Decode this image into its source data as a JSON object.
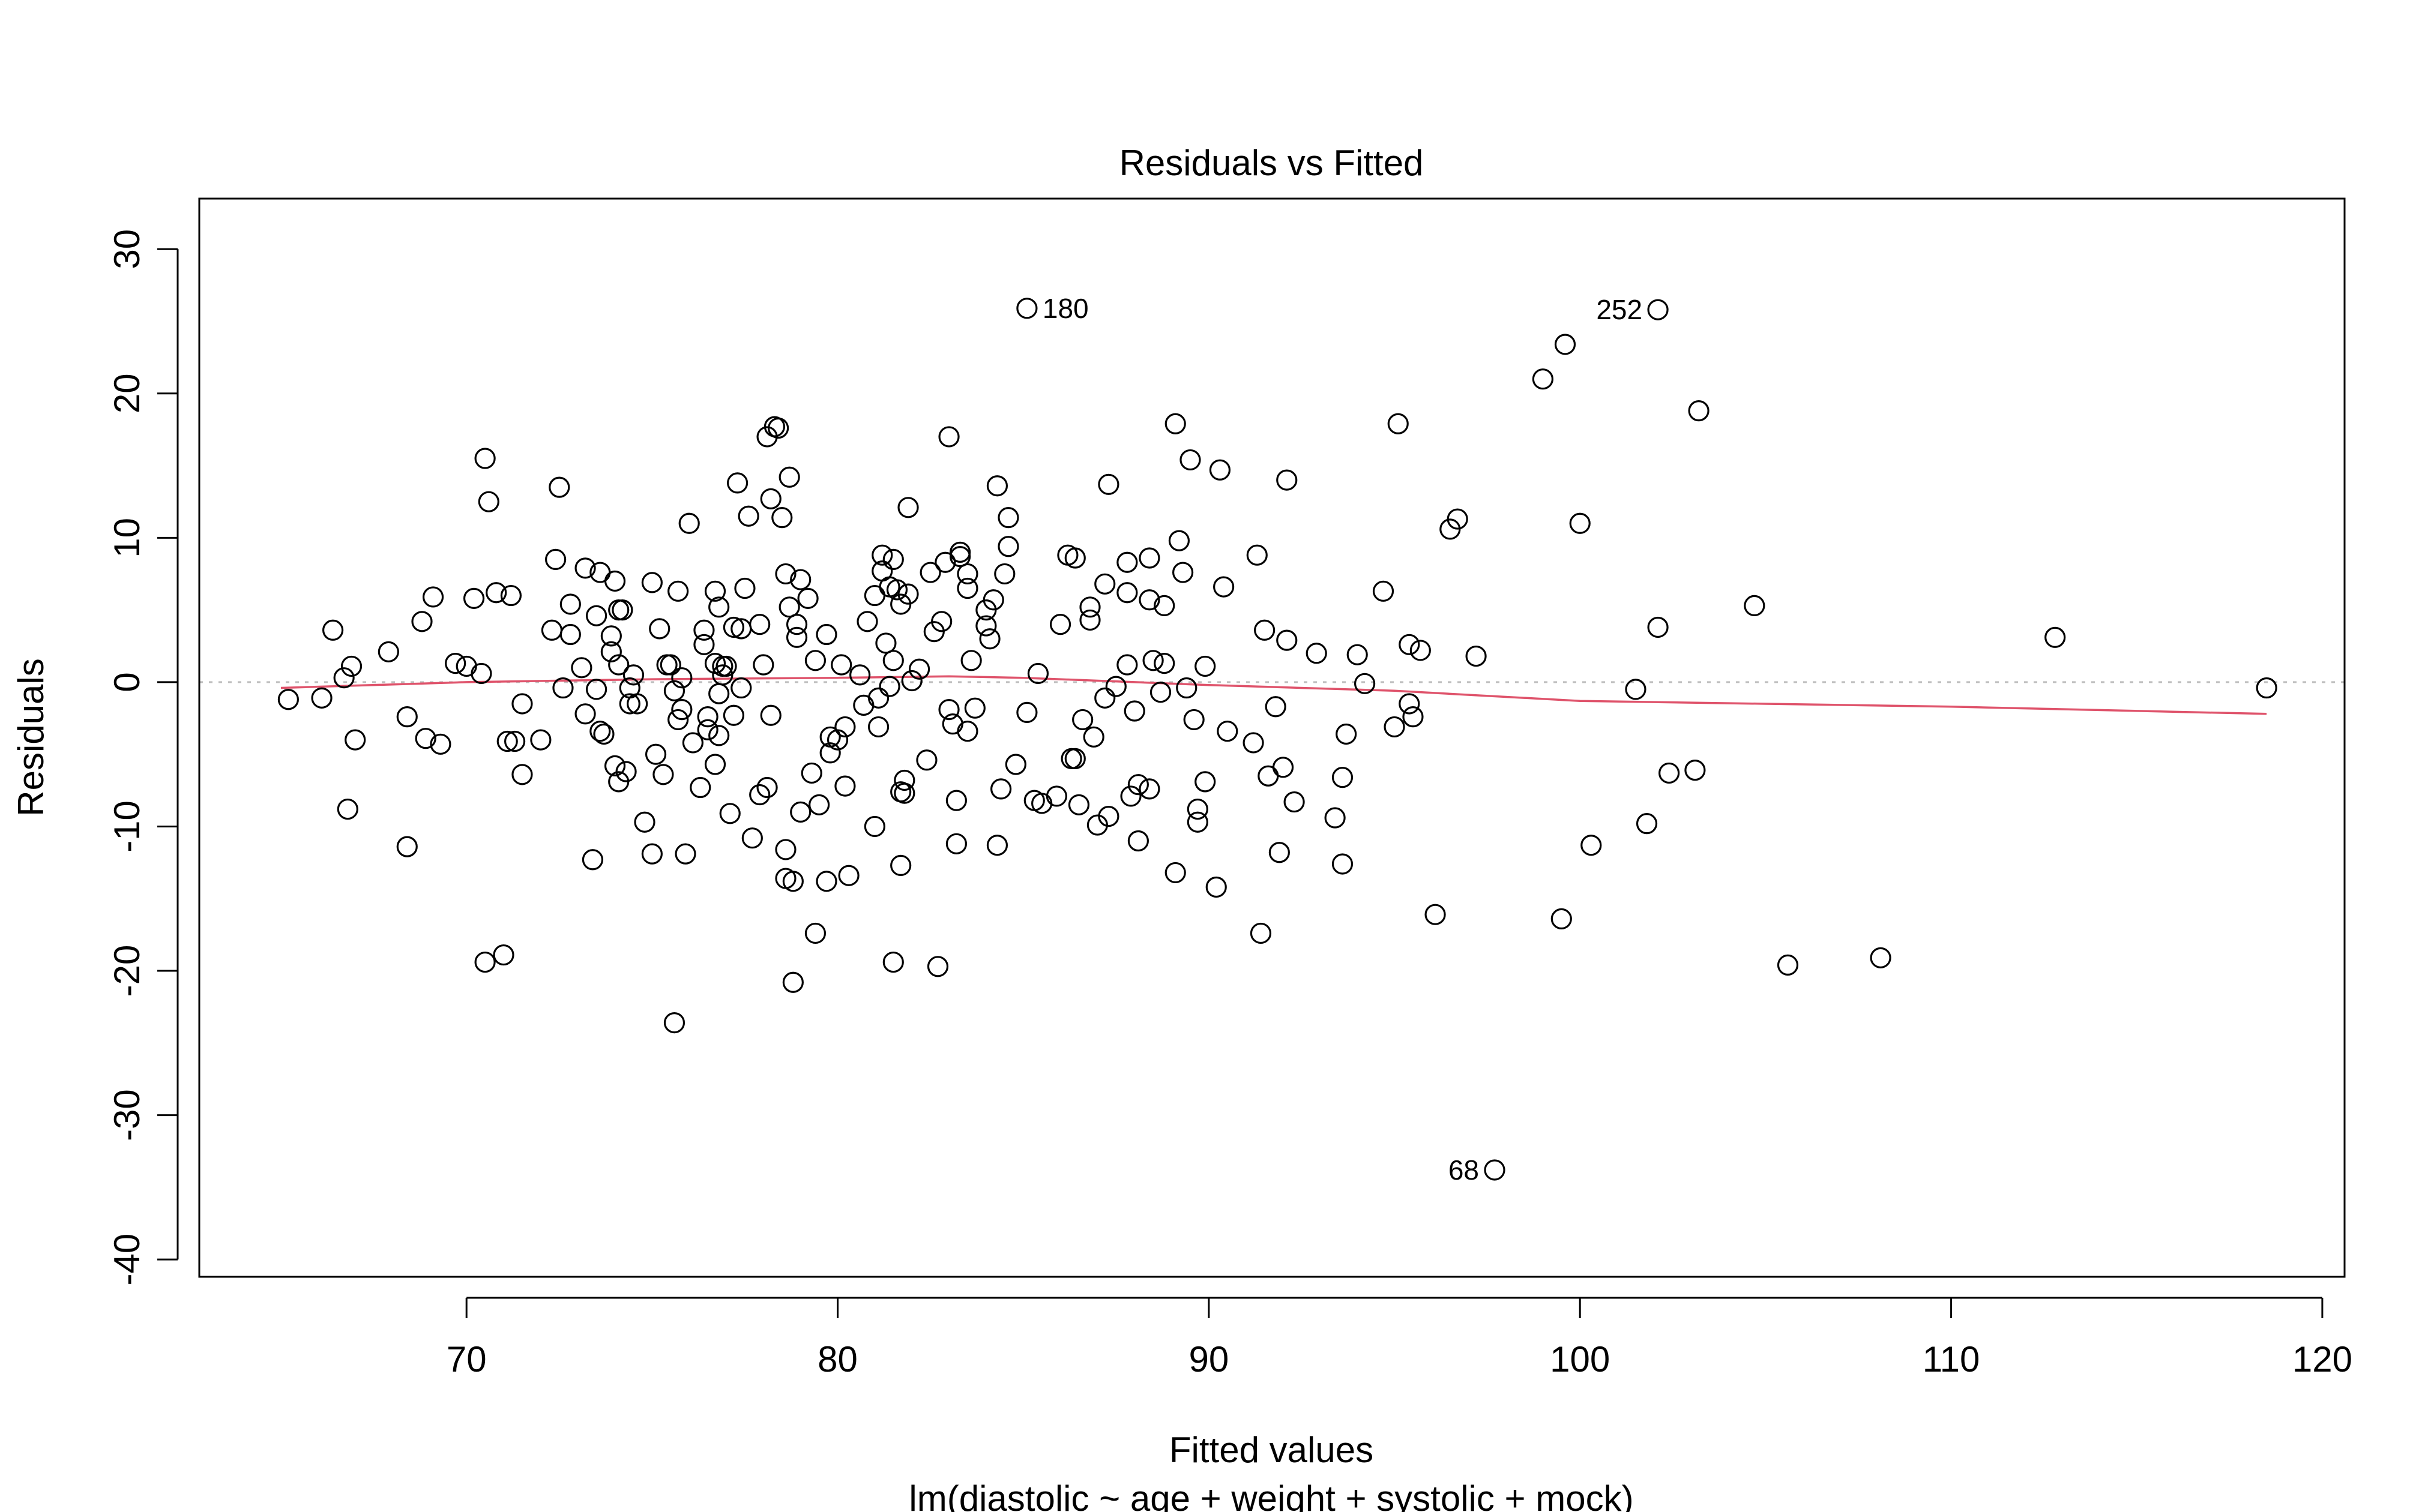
{
  "chart_data": {
    "type": "scatter",
    "title": "Residuals vs Fitted",
    "xlabel": "Fitted values",
    "sublabel": "lm(diastolic ~ age + weight + systolic + mock)",
    "ylabel": "Residuals",
    "xlim": [
      62.8,
      120.6
    ],
    "ylim": [
      -41.2,
      33.5
    ],
    "xticks": [
      70,
      80,
      90,
      100,
      110,
      120
    ],
    "yticks": [
      -40,
      -30,
      -20,
      -10,
      0,
      10,
      20,
      30
    ],
    "reference_line_y": 0,
    "colors": {
      "points": "#000000",
      "smooth": "#DF536B",
      "reference": "#BEBEBE"
    },
    "labeled_points": [
      {
        "x": 85.1,
        "y": 25.9,
        "label": "180"
      },
      {
        "x": 102.1,
        "y": 25.8,
        "label": "252"
      },
      {
        "x": 97.7,
        "y": -33.8,
        "label": "68"
      }
    ],
    "smooth": {
      "x": [
        65.0,
        70,
        75,
        80,
        83,
        85,
        88,
        90,
        95,
        100,
        105,
        110,
        118.5
      ],
      "y": [
        -0.4,
        0.0,
        0.2,
        0.3,
        0.4,
        0.3,
        0.0,
        -0.2,
        -0.6,
        -1.3,
        -1.5,
        -1.7,
        -2.2
      ]
    },
    "points": [
      [
        65.2,
        -1.2
      ],
      [
        66.1,
        -1.1
      ],
      [
        66.4,
        3.6
      ],
      [
        66.7,
        0.3
      ],
      [
        66.8,
        -8.8
      ],
      [
        66.9,
        1.1
      ],
      [
        67.0,
        -4.0
      ],
      [
        67.9,
        2.1
      ],
      [
        68.4,
        -11.4
      ],
      [
        68.4,
        -2.4
      ],
      [
        68.8,
        4.2
      ],
      [
        68.9,
        -3.9
      ],
      [
        69.1,
        5.9
      ],
      [
        69.3,
        -4.3
      ],
      [
        69.7,
        1.3
      ],
      [
        70.0,
        1.1
      ],
      [
        70.2,
        5.8
      ],
      [
        70.4,
        0.6
      ],
      [
        70.5,
        15.5
      ],
      [
        70.5,
        -19.4
      ],
      [
        70.6,
        12.5
      ],
      [
        70.8,
        6.2
      ],
      [
        71.0,
        -18.9
      ],
      [
        71.1,
        -4.1
      ],
      [
        71.2,
        6.0
      ],
      [
        71.3,
        -4.1
      ],
      [
        71.5,
        -6.4
      ],
      [
        71.5,
        -1.5
      ],
      [
        72.0,
        -4.0
      ],
      [
        72.3,
        3.6
      ],
      [
        72.4,
        8.5
      ],
      [
        72.5,
        13.5
      ],
      [
        72.6,
        -0.4
      ],
      [
        72.8,
        5.4
      ],
      [
        72.8,
        3.3
      ],
      [
        73.1,
        1.0
      ],
      [
        73.2,
        -2.2
      ],
      [
        73.2,
        7.9
      ],
      [
        73.4,
        -12.3
      ],
      [
        73.5,
        4.6
      ],
      [
        73.5,
        -0.5
      ],
      [
        73.6,
        7.6
      ],
      [
        73.6,
        -3.4
      ],
      [
        73.7,
        -3.6
      ],
      [
        73.9,
        3.2
      ],
      [
        73.9,
        2.1
      ],
      [
        74.0,
        7.0
      ],
      [
        74.0,
        -5.8
      ],
      [
        74.1,
        5.0
      ],
      [
        74.1,
        1.2
      ],
      [
        74.1,
        -6.9
      ],
      [
        74.2,
        5.0
      ],
      [
        74.3,
        -6.2
      ],
      [
        74.4,
        -1.5
      ],
      [
        74.4,
        -0.4
      ],
      [
        74.5,
        0.5
      ],
      [
        74.6,
        -1.5
      ],
      [
        74.8,
        -9.7
      ],
      [
        75.0,
        -11.9
      ],
      [
        75.0,
        6.9
      ],
      [
        75.1,
        -5.0
      ],
      [
        75.2,
        3.7
      ],
      [
        75.3,
        -6.4
      ],
      [
        75.4,
        1.2
      ],
      [
        75.5,
        1.2
      ],
      [
        75.6,
        -0.6
      ],
      [
        75.6,
        -23.6
      ],
      [
        75.7,
        6.3
      ],
      [
        75.7,
        -2.6
      ],
      [
        75.8,
        -1.9
      ],
      [
        75.8,
        0.3
      ],
      [
        75.9,
        -11.9
      ],
      [
        76.0,
        11.0
      ],
      [
        76.1,
        -4.2
      ],
      [
        76.3,
        -7.3
      ],
      [
        76.4,
        3.6
      ],
      [
        76.4,
        2.6
      ],
      [
        76.5,
        -3.3
      ],
      [
        76.5,
        -2.4
      ],
      [
        76.7,
        -5.7
      ],
      [
        76.7,
        6.3
      ],
      [
        76.7,
        1.3
      ],
      [
        76.8,
        -0.8
      ],
      [
        76.8,
        5.2
      ],
      [
        76.8,
        -3.7
      ],
      [
        76.9,
        1.1
      ],
      [
        76.9,
        0.5
      ],
      [
        77.0,
        1.1
      ],
      [
        77.1,
        -9.1
      ],
      [
        77.2,
        3.8
      ],
      [
        77.2,
        -2.3
      ],
      [
        77.3,
        13.8
      ],
      [
        77.4,
        3.7
      ],
      [
        77.4,
        -0.4
      ],
      [
        77.5,
        6.5
      ],
      [
        77.6,
        11.5
      ],
      [
        77.7,
        -10.8
      ],
      [
        77.9,
        4.0
      ],
      [
        77.9,
        -7.8
      ],
      [
        78.0,
        1.2
      ],
      [
        78.1,
        -7.3
      ],
      [
        78.1,
        17.0
      ],
      [
        78.2,
        12.7
      ],
      [
        78.2,
        -2.3
      ],
      [
        78.3,
        17.7
      ],
      [
        78.4,
        17.6
      ],
      [
        78.5,
        11.4
      ],
      [
        78.6,
        -11.6
      ],
      [
        78.6,
        7.5
      ],
      [
        78.6,
        -13.6
      ],
      [
        78.7,
        5.2
      ],
      [
        78.7,
        14.2
      ],
      [
        78.8,
        -13.8
      ],
      [
        78.8,
        -20.8
      ],
      [
        78.9,
        3.1
      ],
      [
        78.9,
        4.0
      ],
      [
        79.0,
        7.1
      ],
      [
        79.0,
        -9.0
      ],
      [
        79.2,
        5.8
      ],
      [
        79.3,
        -6.3
      ],
      [
        79.4,
        1.5
      ],
      [
        79.4,
        -17.4
      ],
      [
        79.5,
        -8.5
      ],
      [
        79.7,
        3.3
      ],
      [
        79.7,
        -13.8
      ],
      [
        79.8,
        -3.8
      ],
      [
        79.8,
        -4.9
      ],
      [
        80.0,
        -4.0
      ],
      [
        80.1,
        1.2
      ],
      [
        80.2,
        -3.1
      ],
      [
        80.2,
        -7.2
      ],
      [
        80.3,
        -13.4
      ],
      [
        80.6,
        0.5
      ],
      [
        80.7,
        -1.6
      ],
      [
        80.8,
        4.2
      ],
      [
        81.0,
        6.0
      ],
      [
        81.0,
        -10.0
      ],
      [
        81.1,
        -1.1
      ],
      [
        81.1,
        -3.1
      ],
      [
        81.2,
        8.8
      ],
      [
        81.2,
        7.7
      ],
      [
        81.3,
        2.7
      ],
      [
        81.4,
        6.6
      ],
      [
        81.4,
        -0.3
      ],
      [
        81.5,
        8.5
      ],
      [
        81.5,
        1.5
      ],
      [
        81.5,
        -19.4
      ],
      [
        81.6,
        6.4
      ],
      [
        81.7,
        5.4
      ],
      [
        81.7,
        -7.6
      ],
      [
        81.7,
        -12.7
      ],
      [
        81.8,
        -7.7
      ],
      [
        81.8,
        -6.8
      ],
      [
        81.9,
        12.1
      ],
      [
        81.9,
        6.1
      ],
      [
        82.0,
        0.1
      ],
      [
        82.2,
        0.9
      ],
      [
        82.4,
        -5.4
      ],
      [
        82.5,
        7.6
      ],
      [
        82.6,
        3.5
      ],
      [
        82.7,
        -19.7
      ],
      [
        82.8,
        4.2
      ],
      [
        82.9,
        8.3
      ],
      [
        83.0,
        17.0
      ],
      [
        83.0,
        -1.9
      ],
      [
        83.1,
        -2.9
      ],
      [
        83.2,
        -11.2
      ],
      [
        83.2,
        -8.2
      ],
      [
        83.3,
        8.7
      ],
      [
        83.3,
        9.0
      ],
      [
        83.5,
        7.5
      ],
      [
        83.5,
        6.5
      ],
      [
        83.5,
        -3.4
      ],
      [
        83.6,
        1.5
      ],
      [
        83.7,
        -1.8
      ],
      [
        84.0,
        3.9
      ],
      [
        84.0,
        5.0
      ],
      [
        84.1,
        3.0
      ],
      [
        84.2,
        5.7
      ],
      [
        84.3,
        13.6
      ],
      [
        84.3,
        -11.3
      ],
      [
        84.4,
        -7.4
      ],
      [
        84.5,
        7.5
      ],
      [
        84.6,
        11.4
      ],
      [
        84.6,
        9.4
      ],
      [
        84.8,
        -5.7
      ],
      [
        85.1,
        25.9
      ],
      [
        85.1,
        -2.1
      ],
      [
        85.3,
        -8.2
      ],
      [
        85.5,
        -8.4
      ],
      [
        85.4,
        0.6
      ],
      [
        85.9,
        -7.9
      ],
      [
        86.0,
        4.0
      ],
      [
        86.2,
        8.8
      ],
      [
        86.3,
        -5.3
      ],
      [
        86.4,
        8.6
      ],
      [
        86.4,
        -5.3
      ],
      [
        86.5,
        -8.5
      ],
      [
        86.6,
        -2.6
      ],
      [
        86.8,
        4.3
      ],
      [
        86.8,
        5.2
      ],
      [
        86.9,
        -3.8
      ],
      [
        87.0,
        -9.9
      ],
      [
        87.2,
        -1.1
      ],
      [
        87.2,
        6.8
      ],
      [
        87.3,
        13.7
      ],
      [
        87.3,
        -9.3
      ],
      [
        87.5,
        -0.3
      ],
      [
        87.8,
        8.3
      ],
      [
        87.8,
        6.2
      ],
      [
        87.8,
        1.2
      ],
      [
        87.9,
        -7.9
      ],
      [
        88.0,
        -2.0
      ],
      [
        88.1,
        -11.0
      ],
      [
        88.1,
        -7.1
      ],
      [
        88.4,
        5.7
      ],
      [
        88.4,
        8.6
      ],
      [
        88.4,
        -7.4
      ],
      [
        88.5,
        1.5
      ],
      [
        88.7,
        -0.7
      ],
      [
        88.8,
        5.3
      ],
      [
        88.8,
        1.3
      ],
      [
        89.1,
        17.9
      ],
      [
        89.1,
        -13.2
      ],
      [
        89.2,
        9.8
      ],
      [
        89.3,
        7.6
      ],
      [
        89.4,
        -0.4
      ],
      [
        89.5,
        15.4
      ],
      [
        89.6,
        -2.6
      ],
      [
        89.7,
        -8.8
      ],
      [
        89.7,
        -9.7
      ],
      [
        89.9,
        1.1
      ],
      [
        89.9,
        -6.9
      ],
      [
        90.2,
        -14.2
      ],
      [
        90.3,
        14.7
      ],
      [
        90.4,
        6.6
      ],
      [
        90.5,
        -3.4
      ],
      [
        91.2,
        -4.2
      ],
      [
        91.3,
        8.8
      ],
      [
        91.5,
        3.6
      ],
      [
        91.4,
        -17.4
      ],
      [
        91.6,
        -6.5
      ],
      [
        91.8,
        -1.7
      ],
      [
        91.9,
        -11.8
      ],
      [
        92.0,
        -5.9
      ],
      [
        92.1,
        14.0
      ],
      [
        92.1,
        2.9
      ],
      [
        92.3,
        -8.3
      ],
      [
        92.9,
        2.0
      ],
      [
        93.4,
        -9.4
      ],
      [
        93.6,
        -12.6
      ],
      [
        93.6,
        -6.6
      ],
      [
        93.7,
        -3.6
      ],
      [
        94.0,
        1.9
      ],
      [
        94.2,
        -0.1
      ],
      [
        94.7,
        6.3
      ],
      [
        95.0,
        -3.1
      ],
      [
        95.1,
        17.9
      ],
      [
        95.4,
        2.6
      ],
      [
        95.4,
        -1.5
      ],
      [
        95.5,
        -2.4
      ],
      [
        95.7,
        2.2
      ],
      [
        96.1,
        -16.1
      ],
      [
        96.5,
        10.6
      ],
      [
        96.7,
        11.3
      ],
      [
        97.2,
        1.8
      ],
      [
        97.7,
        -33.8
      ],
      [
        99.0,
        21.0
      ],
      [
        99.5,
        -16.4
      ],
      [
        99.6,
        23.4
      ],
      [
        100.0,
        11.0
      ],
      [
        100.3,
        -11.3
      ],
      [
        101.5,
        -0.5
      ],
      [
        101.8,
        -9.8
      ],
      [
        102.1,
        25.8
      ],
      [
        102.1,
        3.8
      ],
      [
        102.4,
        -6.3
      ],
      [
        103.1,
        -6.1
      ],
      [
        103.2,
        18.8
      ],
      [
        104.7,
        5.3
      ],
      [
        105.6,
        -19.6
      ],
      [
        108.1,
        -19.1
      ],
      [
        112.8,
        3.1
      ],
      [
        118.5,
        -0.4
      ]
    ]
  }
}
